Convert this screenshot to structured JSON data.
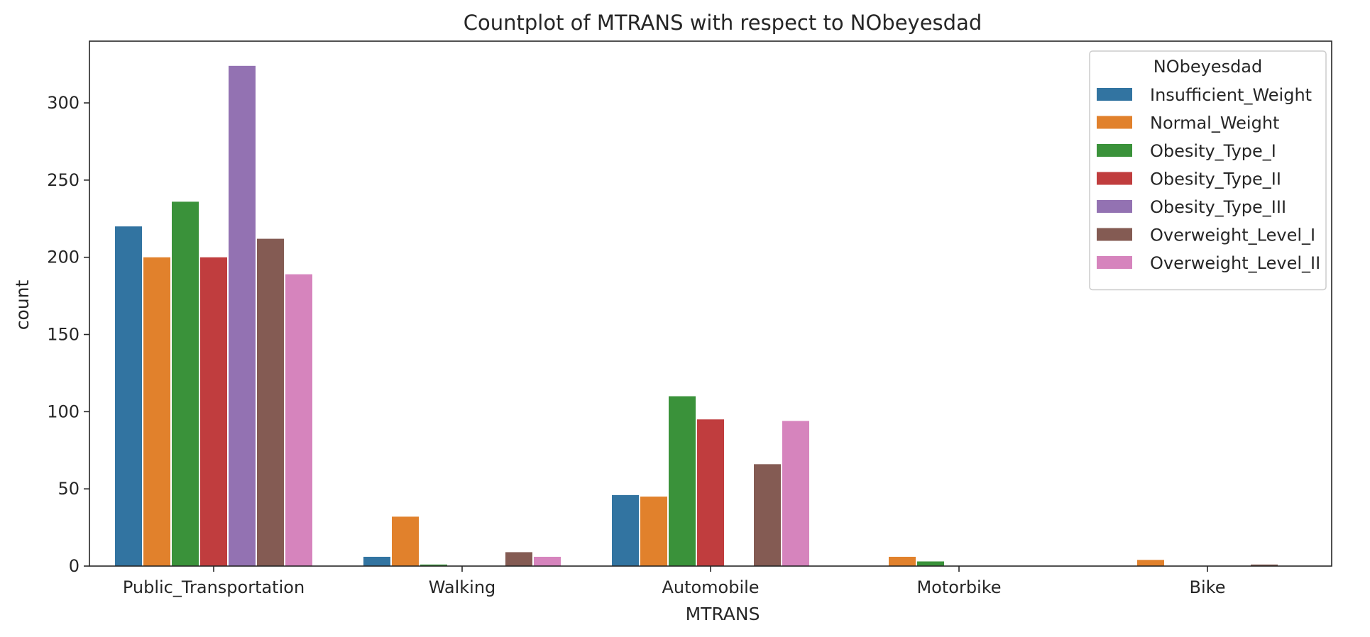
{
  "chart_data": {
    "type": "bar",
    "title": "Countplot of MTRANS with respect to NObeyesdad",
    "xlabel": "MTRANS",
    "ylabel": "count",
    "categories": [
      "Public_Transportation",
      "Walking",
      "Automobile",
      "Motorbike",
      "Bike"
    ],
    "ylim": [
      0,
      340
    ],
    "yticks": [
      0,
      50,
      100,
      150,
      200,
      250,
      300
    ],
    "grid": false,
    "legend": {
      "title": "NObeyesdad",
      "placement": "top-right"
    },
    "series": [
      {
        "name": "Insufficient_Weight",
        "color": "#3274a1",
        "values": [
          220,
          6,
          46,
          0,
          0
        ]
      },
      {
        "name": "Normal_Weight",
        "color": "#e1812c",
        "values": [
          200,
          32,
          45,
          6,
          4
        ]
      },
      {
        "name": "Obesity_Type_I",
        "color": "#3a923a",
        "values": [
          236,
          1,
          110,
          3,
          0
        ]
      },
      {
        "name": "Obesity_Type_II",
        "color": "#c03d3e",
        "values": [
          200,
          0,
          95,
          0,
          0
        ]
      },
      {
        "name": "Obesity_Type_III",
        "color": "#9372b2",
        "values": [
          324,
          0,
          0,
          0,
          0
        ]
      },
      {
        "name": "Overweight_Level_I",
        "color": "#845b53",
        "values": [
          212,
          9,
          66,
          0,
          1
        ]
      },
      {
        "name": "Overweight_Level_II",
        "color": "#d684bd",
        "values": [
          189,
          6,
          94,
          0,
          0
        ]
      }
    ]
  }
}
